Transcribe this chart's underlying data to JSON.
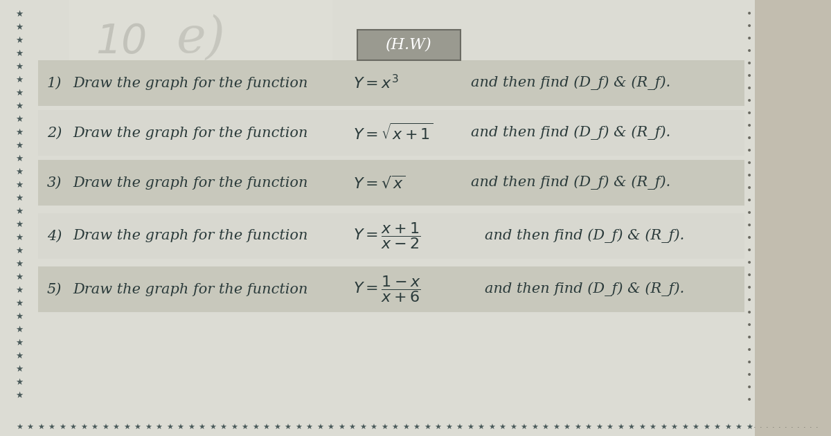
{
  "title": "(H.W)",
  "paper_color": "#dcdcd4",
  "paper_color2": "#e8e8e0",
  "border_star_color": "#4a5a5a",
  "right_shadow_color": "#b0a898",
  "lines": [
    {
      "number": "1)",
      "prefix": "Draw the graph for the function",
      "math": "Y = x^{3}",
      "suffix": "and then find (D_f) & (R_f).",
      "highlight": true
    },
    {
      "number": "2)",
      "prefix": "Draw the graph for the function",
      "math": "Y = \\sqrt{x+1}",
      "suffix": "and then find (D_f) & (R_f).",
      "highlight": false
    },
    {
      "number": "3)",
      "prefix": "Draw the graph for the function",
      "math": "Y = \\sqrt{x}",
      "suffix": "and then find (D_f) & (R_f).",
      "highlight": true
    },
    {
      "number": "4)",
      "prefix": "Draw the graph for the function",
      "math": "Y = \\dfrac{x+1}{x-2}",
      "suffix": "and then find (D_f) & (R_f).",
      "highlight": false
    },
    {
      "number": "5)",
      "prefix": "Draw the graph for the function",
      "math": "Y = \\dfrac{1-x}{x+6}",
      "suffix": "and then find (D_f) & (R_f).",
      "highlight": true
    }
  ],
  "highlight_color": "#c8c8bc",
  "plain_color": "#d8d8d0",
  "text_color": "#2a3a3a",
  "title_box_color": "#9a9a90",
  "title_box_edge": "#6a6a62",
  "watermark_text": "10"
}
